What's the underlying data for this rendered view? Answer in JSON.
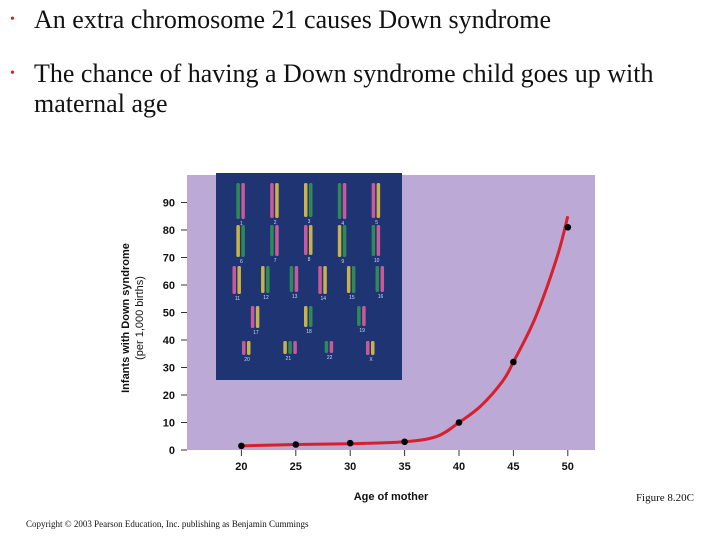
{
  "bullets": [
    {
      "marker": "•",
      "text": "An extra chromosome 21 causes Down syndrome"
    },
    {
      "marker": "•",
      "text": "The chance of having a Down syndrome child goes up with maternal age"
    }
  ],
  "figure_caption": "Figure 8.20C",
  "copyright": "Copyright © 2003 Pearson Education, Inc. publishing as Benjamin Cummings",
  "chart_data": {
    "type": "line",
    "title": "",
    "xlabel": "Age of mother",
    "ylabel": "Infants with Down syndrome",
    "ylabel_sub": "(per 1,000 births)",
    "x_ticks": [
      20,
      25,
      30,
      35,
      40,
      45,
      50
    ],
    "y_ticks": [
      0,
      10,
      20,
      30,
      40,
      50,
      60,
      70,
      80,
      90
    ],
    "xlim": [
      15,
      52.5
    ],
    "ylim": [
      0,
      100
    ],
    "points": [
      {
        "x": 20,
        "y": 1.5
      },
      {
        "x": 25,
        "y": 2
      },
      {
        "x": 30,
        "y": 2.5
      },
      {
        "x": 35,
        "y": 3
      },
      {
        "x": 40,
        "y": 10
      },
      {
        "x": 45,
        "y": 32
      },
      {
        "x": 50,
        "y": 81
      }
    ],
    "curve": [
      {
        "x": 20,
        "y": 1.5
      },
      {
        "x": 25,
        "y": 2
      },
      {
        "x": 30,
        "y": 2.3
      },
      {
        "x": 35,
        "y": 3
      },
      {
        "x": 38,
        "y": 5
      },
      {
        "x": 40,
        "y": 10
      },
      {
        "x": 42,
        "y": 16
      },
      {
        "x": 44,
        "y": 25
      },
      {
        "x": 45,
        "y": 32
      },
      {
        "x": 47,
        "y": 48
      },
      {
        "x": 49,
        "y": 70
      },
      {
        "x": 50,
        "y": 85
      }
    ],
    "grid": false,
    "colors": {
      "plot_background": "#bca9d6",
      "line": "#d8202c",
      "marker": "#000000"
    }
  },
  "karyotype": {
    "labels": [
      "1",
      "2",
      "3",
      "4",
      "5",
      "6",
      "7",
      "8",
      "9",
      "10",
      "11",
      "12",
      "13",
      "14",
      "15",
      "16",
      "17",
      "18",
      "19",
      "20",
      "21",
      "22",
      "X"
    ],
    "colors": {
      "background": "#1f3473",
      "chromosome_a": "#2f8a57",
      "chromosome_b": "#c85a9a",
      "chromosome_c": "#c8b24a"
    }
  }
}
